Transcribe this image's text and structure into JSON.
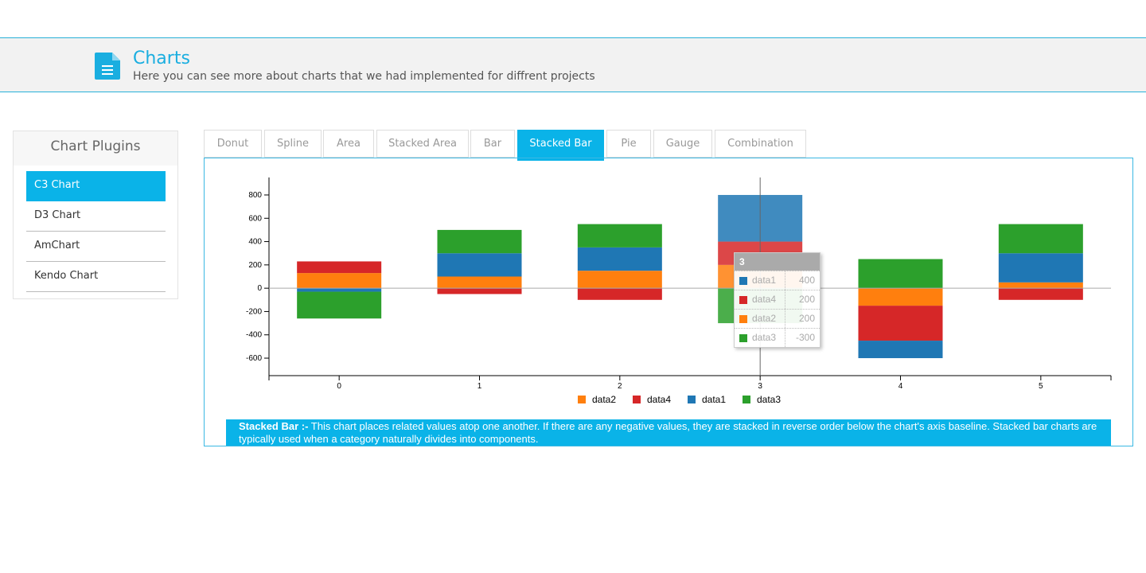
{
  "header": {
    "title": "Charts",
    "subtitle": "Here you can see more about charts that we had implemented for diffrent projects",
    "icon": "document-icon"
  },
  "sidebar": {
    "heading": "Chart Plugins",
    "items": [
      {
        "label": "C3 Chart",
        "active": true
      },
      {
        "label": "D3 Chart",
        "active": false
      },
      {
        "label": "AmChart",
        "active": false
      },
      {
        "label": "Kendo Chart",
        "active": false
      }
    ]
  },
  "tabs": [
    {
      "label": "Donut"
    },
    {
      "label": "Spline"
    },
    {
      "label": "Area"
    },
    {
      "label": "Stacked Area"
    },
    {
      "label": "Bar"
    },
    {
      "label": "Stacked Bar",
      "active": true
    },
    {
      "label": "Pie"
    },
    {
      "label": "Gauge"
    },
    {
      "label": "Combination"
    }
  ],
  "description": {
    "title": "Stacked Bar :-",
    "text": " This chart places related values atop one another. If there are any negative values, they are stacked in reverse order below the chart's axis baseline. Stacked bar charts are typically used when a category naturally divides into components."
  },
  "colors": {
    "accent": "#0ab3e8",
    "data1": "#1f77b4",
    "data2": "#ff7f0e",
    "data3": "#2ca02c",
    "data4": "#d62728"
  },
  "chart_data": {
    "type": "bar",
    "stacked": true,
    "x": [
      0,
      1,
      2,
      3,
      4,
      5
    ],
    "series": [
      {
        "name": "data2",
        "values": [
          130,
          100,
          150,
          200,
          -150,
          50
        ]
      },
      {
        "name": "data4",
        "values": [
          100,
          -50,
          -100,
          200,
          -300,
          -100
        ]
      },
      {
        "name": "data1",
        "values": [
          -30,
          200,
          200,
          400,
          -150,
          250
        ]
      },
      {
        "name": "data3",
        "values": [
          -230,
          200,
          200,
          -300,
          250,
          250
        ]
      }
    ],
    "yticks": [
      -600,
      -400,
      -200,
      0,
      200,
      400,
      600,
      800
    ],
    "ylim": [
      -750,
      950
    ],
    "grid": false,
    "legend": "bottom",
    "focused_x": 3,
    "tooltip": {
      "title": "3",
      "rows": [
        {
          "name": "data1",
          "value": "400"
        },
        {
          "name": "data4",
          "value": "200"
        },
        {
          "name": "data2",
          "value": "200"
        },
        {
          "name": "data3",
          "value": "-300"
        }
      ]
    }
  }
}
